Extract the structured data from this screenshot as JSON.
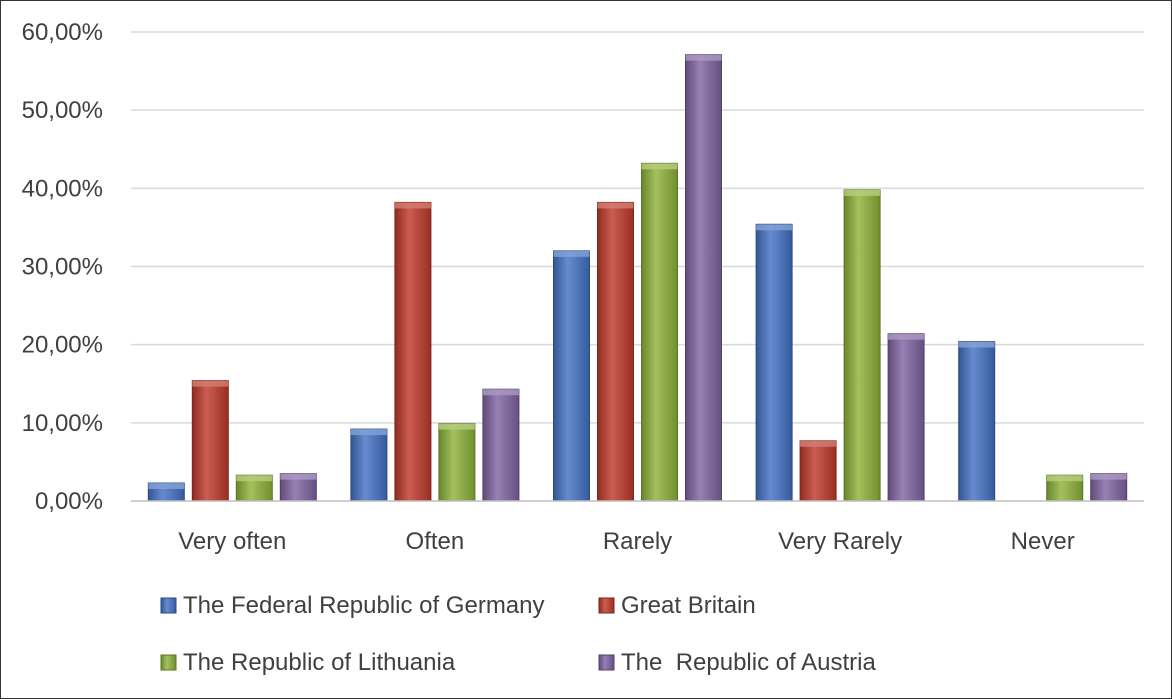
{
  "chart_data": {
    "type": "bar",
    "title": "",
    "xlabel": "",
    "ylabel": "",
    "categories": [
      "Very often",
      "Often",
      "Rarely",
      "Very Rarely",
      "Never"
    ],
    "ylim": [
      0,
      0.6
    ],
    "yticks": [
      0,
      0.1,
      0.2,
      0.3,
      0.4,
      0.5,
      0.6
    ],
    "ytick_labels": [
      "0,00%",
      "10,00%",
      "20,00%",
      "30,00%",
      "40,00%",
      "50,00%",
      "60,00%"
    ],
    "grid": true,
    "legend_position": "bottom",
    "series": [
      {
        "name": "The Federal Republic of Germany",
        "color": "#4472C4",
        "values": [
          0.023,
          0.092,
          0.32,
          0.354,
          0.204
        ]
      },
      {
        "name": "Great Britain",
        "color": "#C0392B",
        "values": [
          0.154,
          0.382,
          0.382,
          0.077,
          0.0
        ]
      },
      {
        "name": "The Republic of Lithuania",
        "color": "#8DB33A",
        "values": [
          0.033,
          0.099,
          0.432,
          0.398,
          0.033
        ]
      },
      {
        "name": "The  Republic of Austria",
        "color": "#8064A2",
        "values": [
          0.035,
          0.143,
          0.571,
          0.214,
          0.035
        ]
      }
    ]
  }
}
